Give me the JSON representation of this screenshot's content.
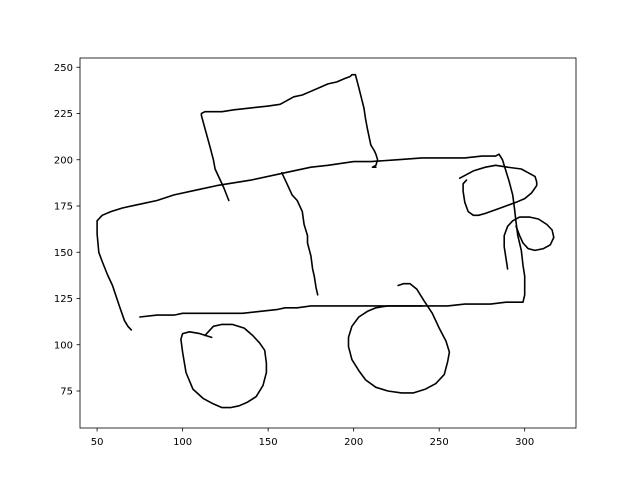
{
  "chart_data": {
    "type": "line",
    "title": "",
    "xlabel": "",
    "ylabel": "",
    "xlim": [
      40,
      330
    ],
    "ylim": [
      55,
      255
    ],
    "x_ticks": [
      50,
      100,
      150,
      200,
      250,
      300
    ],
    "y_ticks": [
      75,
      100,
      125,
      150,
      175,
      200,
      225,
      250
    ],
    "grid": false,
    "line_color": "#000000",
    "series": [
      {
        "points": [
          [
            127,
            178
          ],
          [
            124,
            185
          ],
          [
            119,
            195
          ],
          [
            118,
            200
          ],
          [
            116,
            207
          ],
          [
            113,
            217
          ],
          [
            111,
            224
          ],
          [
            111,
            225
          ],
          [
            113,
            226
          ],
          [
            118,
            226
          ],
          [
            123,
            226
          ],
          [
            130,
            227
          ],
          [
            140,
            228
          ],
          [
            150,
            229
          ],
          [
            157,
            230
          ],
          [
            161,
            232
          ],
          [
            165,
            234
          ],
          [
            170,
            235
          ],
          [
            175,
            237
          ],
          [
            180,
            239
          ],
          [
            185,
            241
          ],
          [
            190,
            242
          ],
          [
            195,
            244
          ],
          [
            198,
            245
          ],
          [
            199,
            246
          ],
          [
            201,
            246
          ],
          [
            203,
            239
          ],
          [
            206,
            228
          ],
          [
            207,
            222
          ],
          [
            208,
            217
          ],
          [
            210,
            208
          ],
          [
            212,
            205
          ],
          [
            213,
            203
          ],
          [
            214,
            200
          ],
          [
            213,
            197
          ],
          [
            211,
            196
          ],
          [
            213,
            196
          ]
        ]
      },
      {
        "points": [
          [
            158,
            193
          ],
          [
            161,
            187
          ],
          [
            164,
            181
          ],
          [
            167,
            178
          ],
          [
            170,
            172
          ],
          [
            171,
            165
          ],
          [
            173,
            159
          ],
          [
            173,
            155
          ],
          [
            175,
            148
          ],
          [
            176,
            141
          ],
          [
            177,
            137
          ],
          [
            178,
            131
          ],
          [
            179,
            127
          ]
        ]
      },
      {
        "points": [
          [
            70,
            108
          ],
          [
            68,
            110
          ],
          [
            66,
            113
          ],
          [
            63,
            121
          ],
          [
            59,
            132
          ],
          [
            56,
            138
          ],
          [
            53,
            145
          ],
          [
            51,
            150
          ],
          [
            50,
            160
          ],
          [
            50,
            167
          ],
          [
            53,
            170
          ],
          [
            58,
            172
          ],
          [
            65,
            174
          ],
          [
            75,
            176
          ],
          [
            85,
            178
          ],
          [
            95,
            181
          ],
          [
            110,
            184
          ],
          [
            120,
            186
          ],
          [
            140,
            189
          ],
          [
            160,
            193
          ],
          [
            175,
            196
          ],
          [
            185,
            197
          ],
          [
            200,
            199
          ],
          [
            210,
            199
          ],
          [
            225,
            200
          ],
          [
            240,
            201
          ],
          [
            255,
            201
          ],
          [
            265,
            201
          ],
          [
            275,
            202
          ],
          [
            283,
            202
          ],
          [
            285,
            203
          ],
          [
            287,
            200
          ],
          [
            289,
            194
          ],
          [
            291,
            188
          ],
          [
            293,
            181
          ],
          [
            294,
            174
          ],
          [
            295,
            166
          ],
          [
            296,
            159
          ],
          [
            298,
            151
          ],
          [
            299,
            143
          ],
          [
            300,
            137
          ],
          [
            300,
            127
          ],
          [
            299,
            123
          ],
          [
            289,
            123
          ],
          [
            280,
            122
          ],
          [
            265,
            122
          ],
          [
            255,
            121
          ],
          [
            245,
            121
          ],
          [
            230,
            121
          ],
          [
            215,
            121
          ],
          [
            200,
            121
          ],
          [
            185,
            121
          ],
          [
            175,
            121
          ],
          [
            167,
            120
          ],
          [
            160,
            120
          ],
          [
            155,
            119
          ],
          [
            145,
            118
          ],
          [
            135,
            117
          ],
          [
            120,
            117
          ],
          [
            110,
            117
          ],
          [
            100,
            117
          ],
          [
            95,
            116
          ],
          [
            85,
            116
          ],
          [
            75,
            115
          ]
        ]
      },
      {
        "points": [
          [
            117,
            104
          ],
          [
            110,
            106
          ],
          [
            104,
            107
          ],
          [
            100,
            106
          ],
          [
            99,
            103
          ],
          [
            100,
            96
          ],
          [
            102,
            85
          ],
          [
            106,
            76
          ],
          [
            112,
            71
          ],
          [
            118,
            68
          ],
          [
            123,
            66
          ],
          [
            128,
            66
          ],
          [
            133,
            67
          ],
          [
            138,
            69
          ],
          [
            143,
            72
          ],
          [
            147,
            78
          ],
          [
            149,
            85
          ],
          [
            149,
            90
          ],
          [
            148,
            97
          ],
          [
            145,
            101
          ],
          [
            141,
            105
          ],
          [
            136,
            109
          ],
          [
            129,
            111
          ],
          [
            123,
            111
          ],
          [
            118,
            110
          ],
          [
            115,
            107
          ],
          [
            113,
            105
          ]
        ]
      },
      {
        "points": [
          [
            226,
            132
          ],
          [
            229,
            133
          ],
          [
            233,
            133
          ],
          [
            237,
            130
          ],
          [
            241,
            124
          ],
          [
            246,
            117
          ],
          [
            250,
            109
          ],
          [
            254,
            102
          ],
          [
            256,
            96
          ],
          [
            255,
            91
          ],
          [
            253,
            84
          ],
          [
            248,
            79
          ],
          [
            242,
            76
          ],
          [
            235,
            74
          ],
          [
            228,
            74
          ],
          [
            220,
            75
          ],
          [
            213,
            77
          ],
          [
            207,
            81
          ],
          [
            203,
            86
          ],
          [
            199,
            92
          ],
          [
            197,
            99
          ],
          [
            197,
            104
          ],
          [
            199,
            110
          ],
          [
            203,
            115
          ],
          [
            208,
            118
          ],
          [
            213,
            120
          ],
          [
            220,
            121
          ],
          [
            228,
            121
          ],
          [
            240,
            121
          ]
        ]
      },
      {
        "points": [
          [
            262,
            190
          ],
          [
            270,
            194
          ],
          [
            277,
            196
          ],
          [
            283,
            197
          ],
          [
            290,
            196
          ],
          [
            298,
            195
          ],
          [
            302,
            193
          ],
          [
            306,
            191
          ],
          [
            307,
            188
          ],
          [
            307,
            186
          ],
          [
            304,
            182
          ],
          [
            300,
            179
          ],
          [
            295,
            177
          ],
          [
            289,
            175
          ],
          [
            283,
            173
          ],
          [
            277,
            171
          ],
          [
            273,
            170
          ],
          [
            270,
            170
          ],
          [
            267,
            172
          ],
          [
            265,
            177
          ],
          [
            264,
            183
          ],
          [
            264,
            187
          ],
          [
            266,
            189
          ]
        ]
      },
      {
        "points": [
          [
            290,
            141
          ],
          [
            289,
            147
          ],
          [
            288,
            153
          ],
          [
            288,
            159
          ],
          [
            290,
            164
          ],
          [
            293,
            167
          ],
          [
            297,
            169
          ],
          [
            303,
            169
          ],
          [
            308,
            168
          ],
          [
            313,
            165
          ],
          [
            316,
            162
          ],
          [
            317,
            158
          ],
          [
            315,
            154
          ],
          [
            311,
            152
          ],
          [
            306,
            151
          ],
          [
            302,
            152
          ],
          [
            299,
            155
          ],
          [
            297,
            159
          ],
          [
            295,
            164
          ]
        ]
      }
    ]
  }
}
